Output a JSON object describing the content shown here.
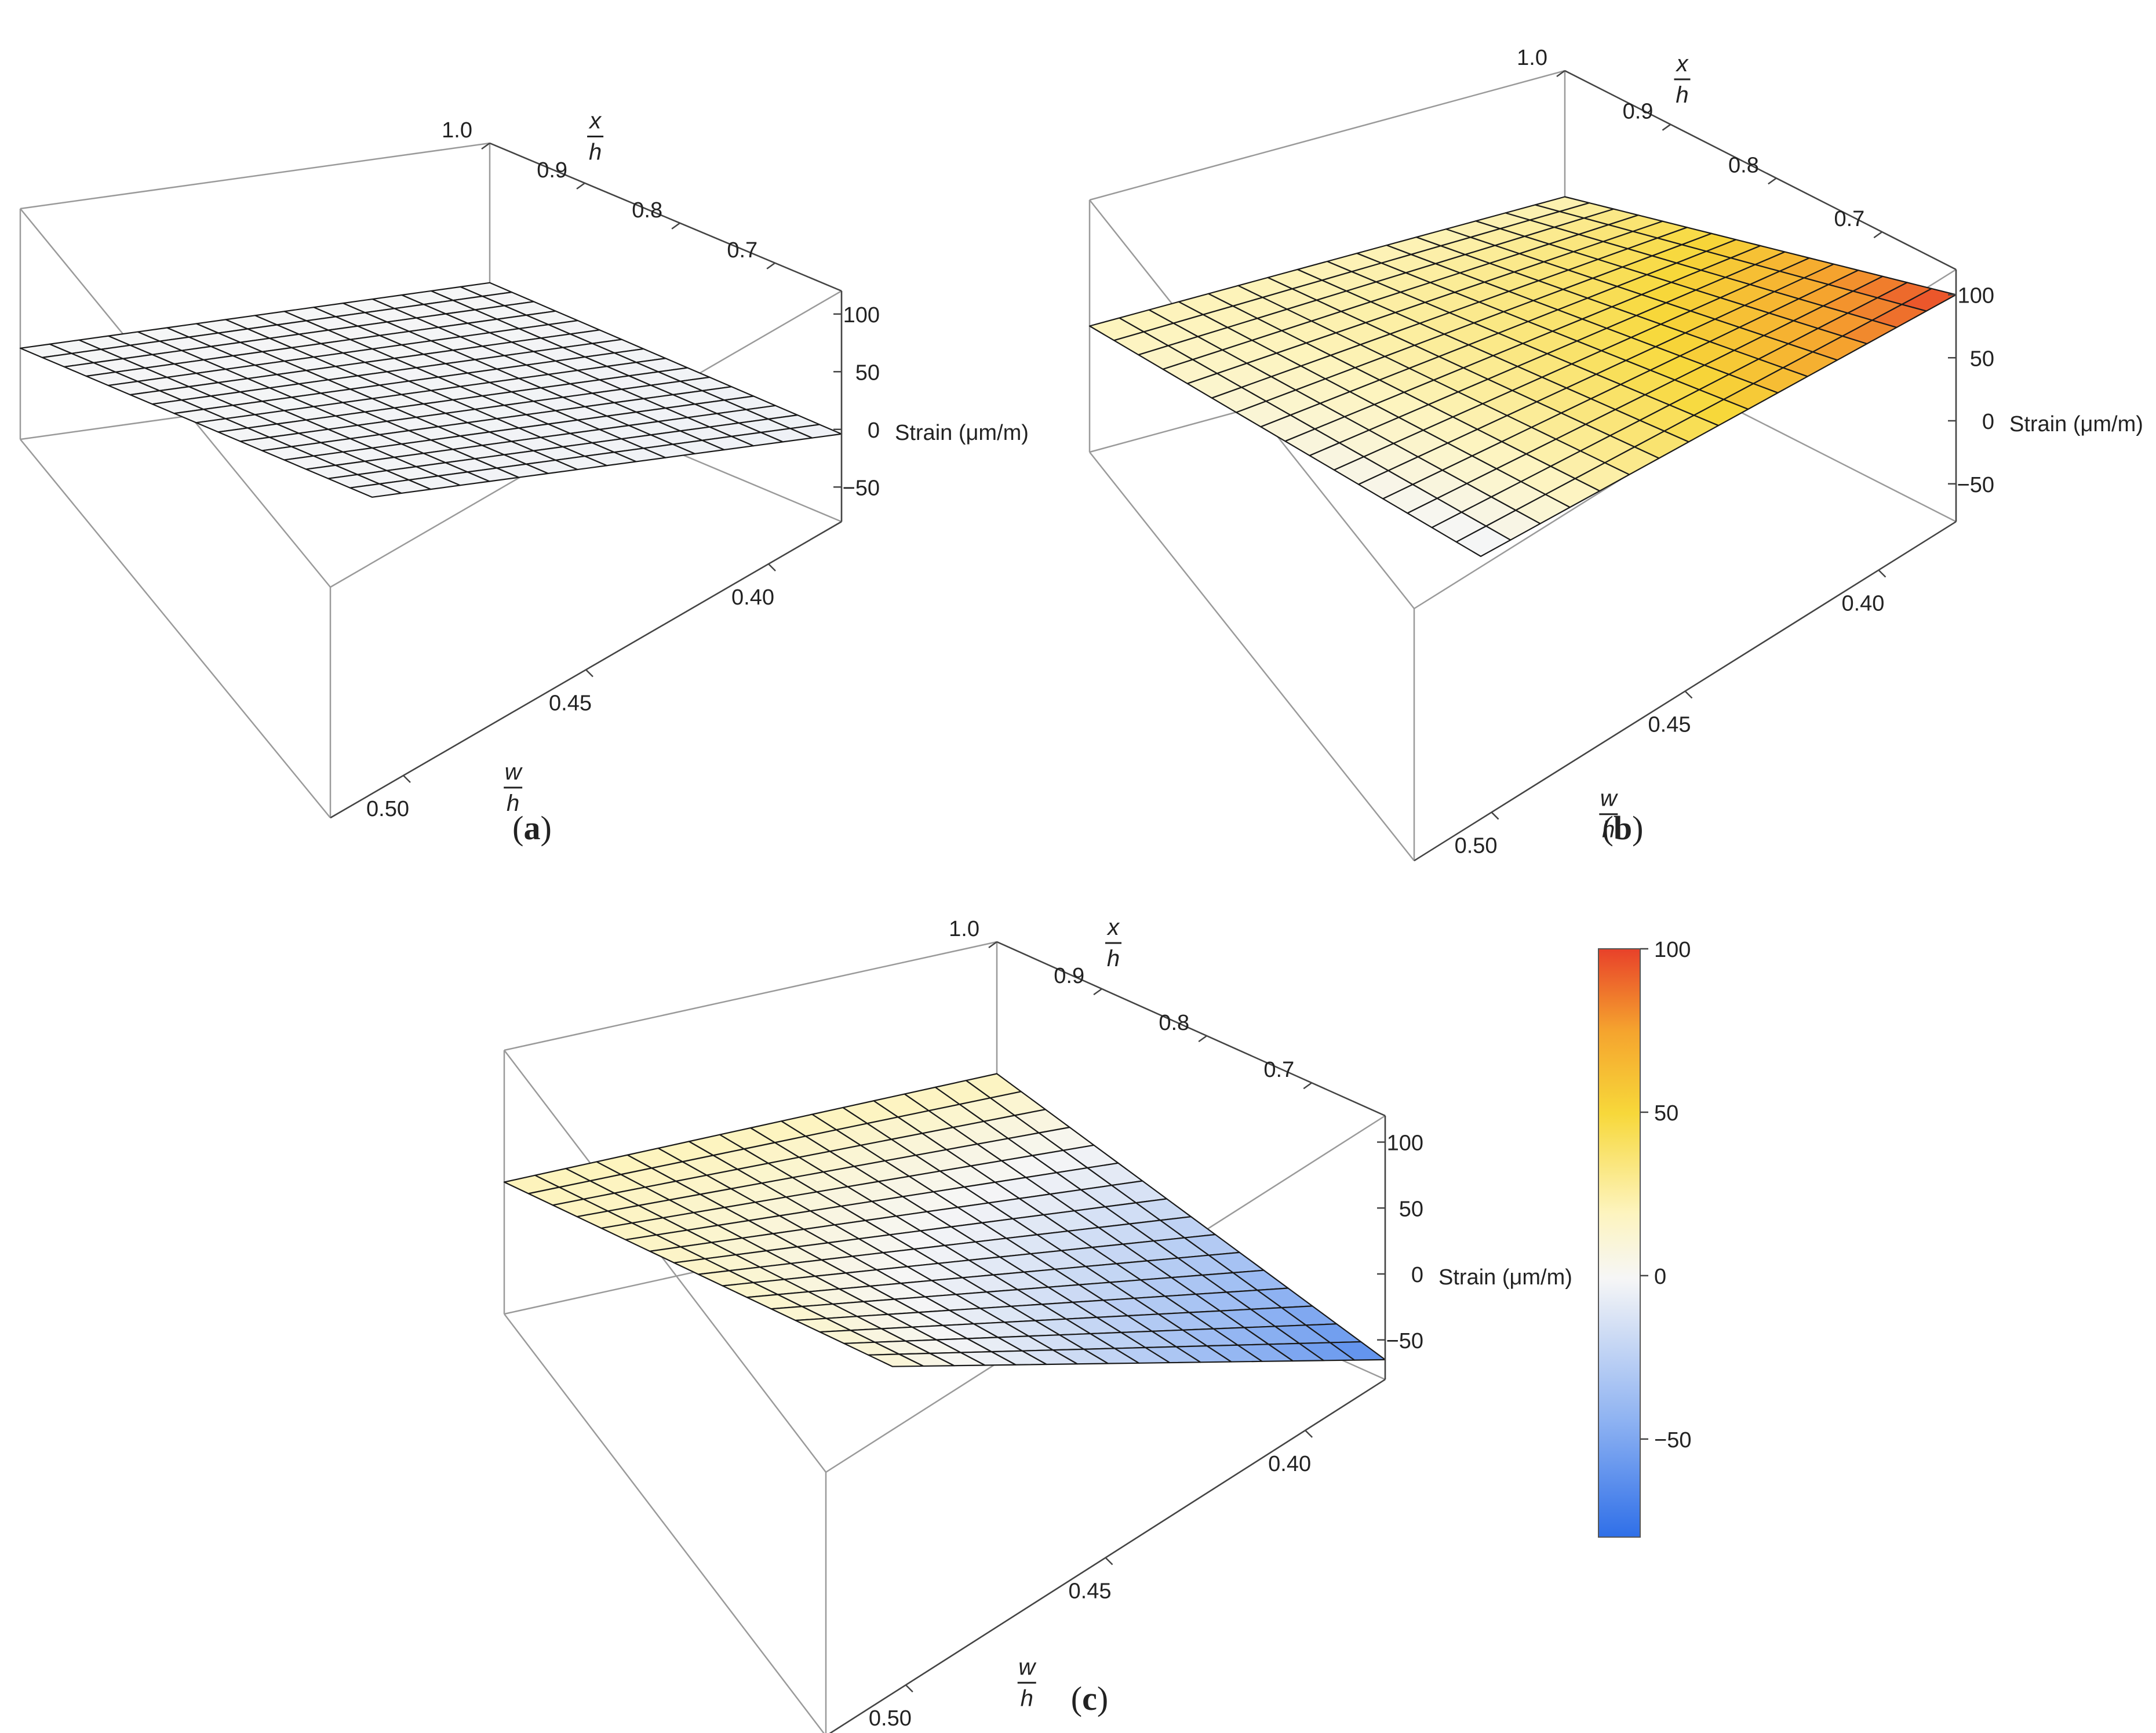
{
  "figure": {
    "panels": [
      {
        "id": "a",
        "label": "(a)"
      },
      {
        "id": "b",
        "label": "(b)"
      },
      {
        "id": "c",
        "label": "(c)"
      }
    ],
    "colorbar": {
      "ticks": [
        "100",
        "50",
        "0",
        "−50"
      ],
      "tick_values": [
        100,
        50,
        0,
        -50
      ],
      "range": [
        -80,
        100
      ],
      "colors": [
        "#2f6fe8",
        "#8fb3f2",
        "#f6f6f6",
        "#fdf4bf",
        "#f7d83a",
        "#f5a42e",
        "#e8412a"
      ]
    }
  },
  "axes_text": {
    "x_num": "x",
    "x_den": "h",
    "w_num": "w",
    "w_den": "h",
    "z_label": "Strain (μm/m)",
    "x_ticks": [
      "1.0",
      "0.9",
      "0.8",
      "0.7"
    ],
    "w_ticks": [
      "0.40",
      "0.45",
      "0.50"
    ],
    "z_ticks": [
      "100",
      "50",
      "0",
      "−50"
    ]
  },
  "chart_data": [
    {
      "type": "surface3d",
      "panel": "a",
      "x_axis": {
        "label": "x/h",
        "range": [
          0.63,
          1.0
        ],
        "ticks": [
          1.0,
          0.9,
          0.8,
          0.7
        ]
      },
      "w_axis": {
        "label": "w/h",
        "range": [
          0.38,
          0.52
        ],
        "ticks": [
          0.4,
          0.45,
          0.5
        ]
      },
      "z_axis": {
        "label": "Strain (μm/m)",
        "range": [
          -80,
          120
        ],
        "ticks": [
          100,
          50,
          0,
          -50
        ]
      },
      "grid": [
        16,
        16
      ],
      "corners": {
        "x1.0_w0.40": -1,
        "x1.0_w0.52": -1,
        "x0.63_w0.40": -4,
        "x0.63_w0.52": -2
      }
    },
    {
      "type": "surface3d",
      "panel": "b",
      "x_axis": {
        "label": "x/h",
        "range": [
          0.63,
          1.0
        ],
        "ticks": [
          1.0,
          0.9,
          0.8,
          0.7
        ]
      },
      "w_axis": {
        "label": "w/h",
        "range": [
          0.38,
          0.52
        ],
        "ticks": [
          0.4,
          0.45,
          0.5
        ]
      },
      "z_axis": {
        "label": "Strain (μm/m)",
        "range": [
          -80,
          120
        ],
        "ticks": [
          100,
          50,
          0,
          -50
        ]
      },
      "grid": [
        16,
        16
      ],
      "corners": {
        "x1.0_w0.40": 20,
        "x1.0_w0.52": 20,
        "x0.63_w0.40": 100,
        "x0.63_w0.52": -5
      }
    },
    {
      "type": "surface3d",
      "panel": "c",
      "x_axis": {
        "label": "x/h",
        "range": [
          0.63,
          1.0
        ],
        "ticks": [
          1.0,
          0.9,
          0.8,
          0.7
        ]
      },
      "w_axis": {
        "label": "w/h",
        "range": [
          0.38,
          0.52
        ],
        "ticks": [
          0.4,
          0.45,
          0.5
        ]
      },
      "z_axis": {
        "label": "Strain (μm/m)",
        "range": [
          -80,
          120
        ],
        "ticks": [
          100,
          50,
          0,
          -50
        ]
      },
      "grid": [
        16,
        16
      ],
      "corners": {
        "x1.0_w0.40": 20,
        "x1.0_w0.52": 20,
        "x0.63_w0.40": -65,
        "x0.63_w0.52": 12
      }
    }
  ]
}
